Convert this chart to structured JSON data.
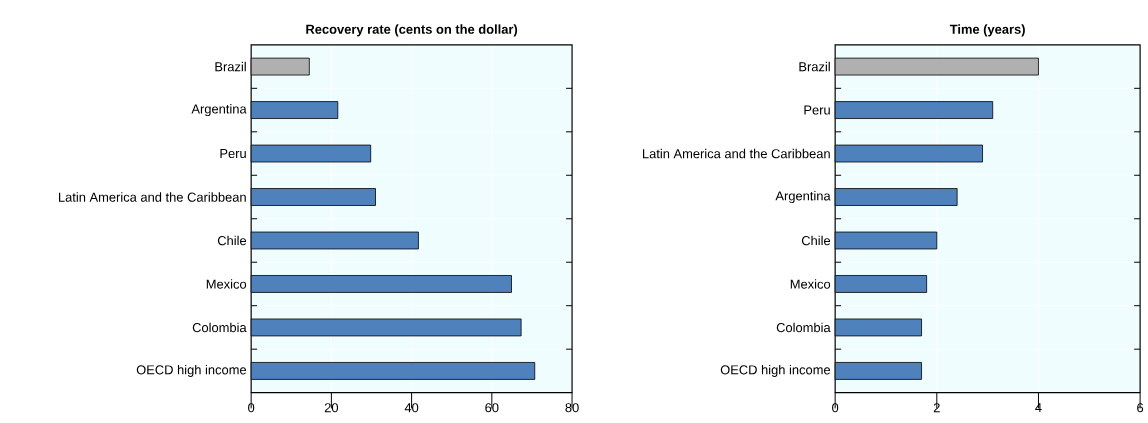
{
  "chart_data": [
    {
      "type": "bar",
      "orientation": "horizontal",
      "title": "Recovery rate (cents on the dollar)",
      "categories": [
        "Brazil",
        "Argentina",
        "Peru",
        "Latin America and the Caribbean",
        "Chile",
        "Mexico",
        "Colombia",
        "OECD high income"
      ],
      "values": [
        14.5,
        21.6,
        29.8,
        31.0,
        41.7,
        64.9,
        67.3,
        70.7
      ],
      "colors": [
        "#b0b0b0",
        "#4f81bd",
        "#4f81bd",
        "#4f81bd",
        "#4f81bd",
        "#4f81bd",
        "#4f81bd",
        "#4f81bd"
      ],
      "xlim": [
        0,
        80
      ],
      "xticks": [
        0,
        20,
        40,
        60,
        80
      ],
      "grid": "x"
    },
    {
      "type": "bar",
      "orientation": "horizontal",
      "title": "Time (years)",
      "categories": [
        "Brazil",
        "Peru",
        "Latin America and the Caribbean",
        "Argentina",
        "Chile",
        "Mexico",
        "Colombia",
        "OECD high income"
      ],
      "values": [
        4.0,
        3.1,
        2.9,
        2.4,
        2.0,
        1.8,
        1.7,
        1.7
      ],
      "colors": [
        "#b0b0b0",
        "#4f81bd",
        "#4f81bd",
        "#4f81bd",
        "#4f81bd",
        "#4f81bd",
        "#4f81bd",
        "#4f81bd"
      ],
      "xlim": [
        0,
        6
      ],
      "xticks": [
        0,
        2,
        4,
        6
      ],
      "grid": "x"
    }
  ]
}
